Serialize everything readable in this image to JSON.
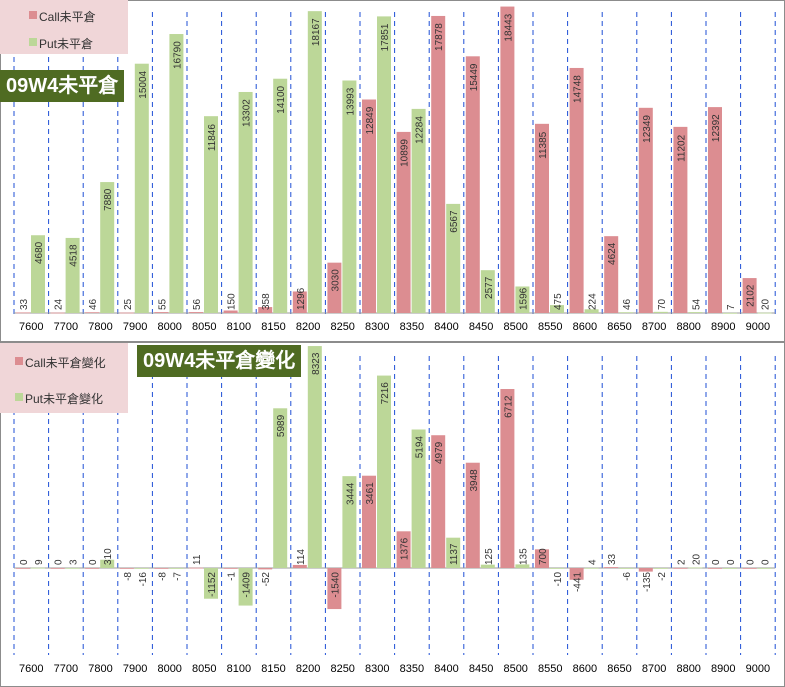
{
  "colors": {
    "call": "#dc8d91",
    "put": "#bcd798",
    "title_bg": "#4f6b22",
    "legend_bg": "#f0d6d8",
    "grid": "#1f4fd6"
  },
  "top": {
    "title": "09W4未平倉",
    "legend": [
      {
        "label": "Call未平倉",
        "color": "#dc8d91"
      },
      {
        "label": "Put未平倉",
        "color": "#bcd798"
      }
    ]
  },
  "bottom": {
    "title": "09W4未平倉變化",
    "legend": [
      {
        "label": "Call未平倉變化",
        "color": "#dc8d91"
      },
      {
        "label": "Put未平倉變化",
        "color": "#bcd798"
      }
    ]
  },
  "chart_data": [
    {
      "type": "bar",
      "title": "09W4未平倉",
      "categories": [
        "7600",
        "7700",
        "7800",
        "7900",
        "8000",
        "8050",
        "8100",
        "8150",
        "8200",
        "8250",
        "8300",
        "8350",
        "8400",
        "8450",
        "8500",
        "8550",
        "8600",
        "8650",
        "8700",
        "8800",
        "8900",
        "9000"
      ],
      "series": [
        {
          "name": "Call未平倉",
          "values": [
            33,
            24,
            46,
            25,
            55,
            56,
            150,
            358,
            1296,
            3030,
            12849,
            10899,
            17878,
            15449,
            18443,
            11385,
            14748,
            4624,
            12349,
            11202,
            12392,
            2102
          ]
        },
        {
          "name": "Put未平倉",
          "values": [
            4680,
            4518,
            7880,
            15004,
            16790,
            11846,
            13302,
            14100,
            18167,
            13993,
            17851,
            12284,
            6567,
            2577,
            1596,
            475,
            224,
            46,
            70,
            54,
            7,
            20
          ]
        }
      ],
      "ylim": [
        0,
        19500
      ],
      "grid": "vertical dashed"
    },
    {
      "type": "bar",
      "title": "09W4未平倉變化",
      "categories": [
        "7600",
        "7700",
        "7800",
        "7900",
        "8000",
        "8050",
        "8100",
        "8150",
        "8200",
        "8250",
        "8300",
        "8350",
        "8400",
        "8450",
        "8500",
        "8550",
        "8600",
        "8650",
        "8700",
        "8800",
        "8900",
        "9000"
      ],
      "series": [
        {
          "name": "Call未平倉變化",
          "values": [
            0,
            0,
            0,
            -8,
            -8,
            11,
            -1,
            -52,
            114,
            -1540,
            3461,
            1376,
            4979,
            3948,
            6712,
            700,
            -441,
            33,
            -135,
            2,
            0,
            0
          ]
        },
        {
          "name": "Put未平倉變化",
          "values": [
            9,
            3,
            310,
            -16,
            -7,
            -1152,
            -1409,
            5989,
            8323,
            3444,
            7216,
            5194,
            1137,
            125,
            135,
            -10,
            4,
            -6,
            -2,
            20,
            0,
            0
          ]
        }
      ],
      "ylim": [
        -2700,
        8700
      ],
      "grid": "vertical dashed"
    }
  ]
}
